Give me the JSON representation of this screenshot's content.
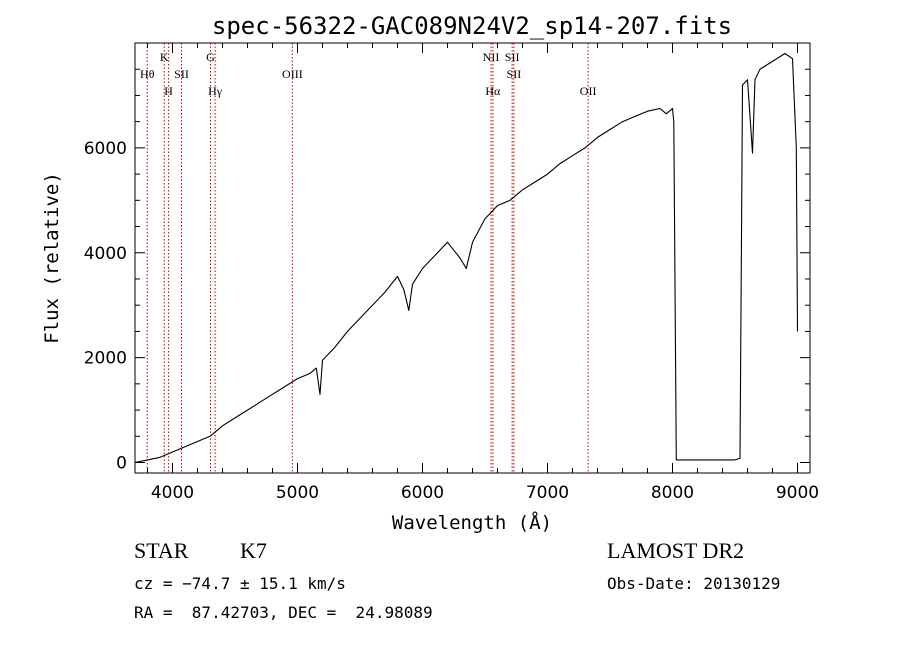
{
  "chart_data": {
    "type": "line",
    "title": "spec-56322-GAC089N24V2_sp14-207.fits",
    "xlabel": "Wavelength (Å)",
    "ylabel": "Flux (relative)",
    "xlim": [
      3700,
      9100
    ],
    "ylim": [
      -200,
      8000
    ],
    "x_ticks": [
      4000,
      5000,
      6000,
      7000,
      8000,
      9000
    ],
    "x_tick_labels": [
      "4000",
      "5000",
      "6000",
      "7000",
      "8000",
      "9000"
    ],
    "y_ticks": [
      0,
      2000,
      4000,
      6000
    ],
    "y_tick_labels": [
      "0",
      "2000",
      "4000",
      "6000"
    ],
    "grid": false,
    "line_color": "#000000",
    "marker_color": "#cc0000",
    "line_markers": [
      {
        "x": 3798,
        "label": "Hθ",
        "row": 2
      },
      {
        "x": 3934,
        "label": "K",
        "row": 1
      },
      {
        "x": 3969,
        "label": "H",
        "row": 3
      },
      {
        "x": 4072,
        "label": "SII",
        "row": 2
      },
      {
        "x": 4304,
        "label": "G",
        "row": 1
      },
      {
        "x": 4341,
        "label": "Hγ",
        "row": 3
      },
      {
        "x": 4959,
        "label": "OIII",
        "row": 2
      },
      {
        "x": 6548,
        "label": "NII",
        "row": 1
      },
      {
        "x": 6563,
        "label": "Hα",
        "row": 3
      },
      {
        "x": 6717,
        "label": "SII",
        "row": 1
      },
      {
        "x": 6731,
        "label": "SII",
        "row": 2
      },
      {
        "x": 7325,
        "label": "OII",
        "row": 3
      }
    ],
    "series": [
      {
        "values_x": [
          3700,
          3800,
          3900,
          4000,
          4100,
          4200,
          4300,
          4400,
          4500,
          4600,
          4700,
          4800,
          4900,
          5000,
          5100,
          5150,
          5180,
          5200,
          5300,
          5400,
          5500,
          5600,
          5700,
          5800,
          5850,
          5890,
          5920,
          6000,
          6100,
          6200,
          6300,
          6350,
          6400,
          6500,
          6600,
          6700,
          6800,
          6900,
          7000,
          7100,
          7200,
          7300,
          7400,
          7500,
          7600,
          7700,
          7800,
          7900,
          7950,
          8000,
          8010,
          8030,
          8100,
          8200,
          8300,
          8400,
          8500,
          8540,
          8560,
          8600,
          8640,
          8660,
          8700,
          8800,
          8900,
          8960,
          8990,
          9000
        ],
        "values_y": [
          0,
          50,
          100,
          200,
          300,
          400,
          500,
          700,
          850,
          1000,
          1150,
          1300,
          1450,
          1600,
          1700,
          1800,
          1300,
          1950,
          2200,
          2500,
          2750,
          3000,
          3250,
          3550,
          3300,
          2900,
          3400,
          3700,
          3950,
          4200,
          3900,
          3700,
          4200,
          4650,
          4900,
          5000,
          5200,
          5350,
          5500,
          5700,
          5850,
          6000,
          6200,
          6350,
          6500,
          6600,
          6700,
          6750,
          6650,
          6750,
          6500,
          50,
          50,
          50,
          50,
          50,
          50,
          80,
          7200,
          7300,
          5900,
          7300,
          7500,
          7650,
          7800,
          7700,
          6000,
          2500
        ]
      }
    ]
  },
  "footer": {
    "object_class": "STAR",
    "subclass": "K7",
    "redshift": "cz = −74.7 ± 15.1 km/s",
    "coords": "RA =  87.42703, DEC =  24.98089",
    "survey": "LAMOST DR2",
    "obs_date": "Obs-Date: 20130129"
  }
}
